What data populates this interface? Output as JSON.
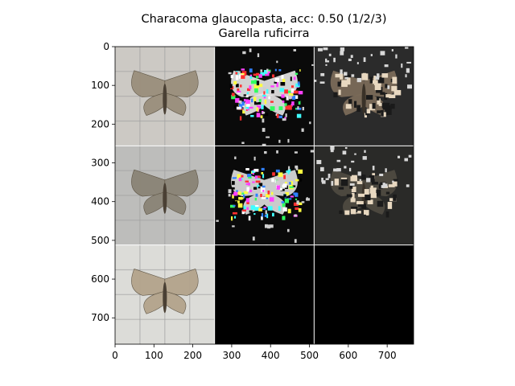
{
  "title_lines": [
    "Characoma glaucopasta, acc: 0.50 (1/2/3)",
    "Garella ruficirra"
  ],
  "chart_data": {
    "type": "image-grid",
    "title": "Characoma glaucopasta, acc: 0.50 (1/2/3)\nGarella ruficirra",
    "xlim": [
      0,
      768
    ],
    "ylim": [
      768,
      0
    ],
    "x_ticks": [
      0,
      100,
      200,
      300,
      400,
      500,
      600,
      700
    ],
    "y_ticks": [
      0,
      100,
      200,
      300,
      400,
      500,
      600,
      700
    ],
    "grid_rows": 3,
    "grid_cols": 3,
    "panel_size": 256,
    "panels": [
      {
        "row": 0,
        "col": 0,
        "kind": "moth-photo",
        "bg": "#ccc9c4",
        "wing": "#9a8f7c"
      },
      {
        "row": 0,
        "col": 1,
        "kind": "saliency-colored",
        "bg": "#0a0a0a",
        "wing": "#e8e8e8"
      },
      {
        "row": 0,
        "col": 2,
        "kind": "masked-photo",
        "bg": "#2b2b2b",
        "wing": "#7a6a58"
      },
      {
        "row": 1,
        "col": 0,
        "kind": "moth-photo",
        "bg": "#bdbdbb",
        "wing": "#8a8476"
      },
      {
        "row": 1,
        "col": 1,
        "kind": "saliency-colored",
        "bg": "#0a0a0a",
        "wing": "#e0e0e0"
      },
      {
        "row": 1,
        "col": 2,
        "kind": "masked-photo",
        "bg": "#2a2a28",
        "wing": "#4e4a40"
      },
      {
        "row": 2,
        "col": 0,
        "kind": "moth-photo",
        "bg": "#dcdcd8",
        "wing": "#b3a48c"
      },
      {
        "row": 2,
        "col": 1,
        "kind": "empty",
        "bg": "#000000",
        "wing": "#000000"
      },
      {
        "row": 2,
        "col": 2,
        "kind": "empty",
        "bg": "#000000",
        "wing": "#000000"
      }
    ]
  }
}
